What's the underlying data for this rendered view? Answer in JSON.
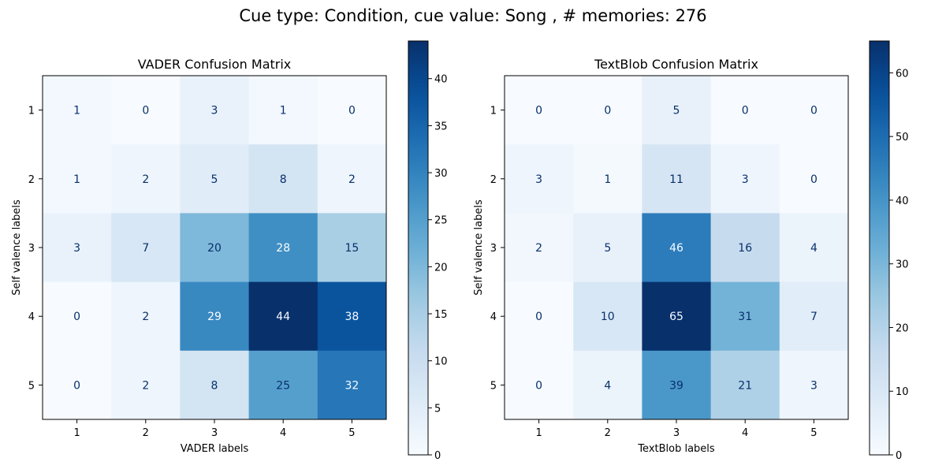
{
  "figure": {
    "suptitle": "Cue type: Condition, cue value: Song , # memories: 276"
  },
  "chart_data": [
    {
      "type": "heatmap",
      "title": "VADER Confusion Matrix",
      "xlabel": "VADER labels",
      "ylabel": "Self valence labels",
      "x_categories": [
        "1",
        "2",
        "3",
        "4",
        "5"
      ],
      "y_categories": [
        "1",
        "2",
        "3",
        "4",
        "5"
      ],
      "values": [
        [
          1,
          0,
          3,
          1,
          0
        ],
        [
          1,
          2,
          5,
          8,
          2
        ],
        [
          3,
          7,
          20,
          28,
          15
        ],
        [
          0,
          2,
          29,
          44,
          38
        ],
        [
          0,
          2,
          8,
          25,
          32
        ]
      ],
      "colormap": "Blues",
      "colorbar": {
        "range": [
          0,
          44
        ],
        "ticks": [
          0,
          5,
          10,
          15,
          20,
          25,
          30,
          35,
          40
        ]
      },
      "grid": false
    },
    {
      "type": "heatmap",
      "title": "TextBlob Confusion Matrix",
      "xlabel": "TextBlob labels",
      "ylabel": "Self valence labels",
      "x_categories": [
        "1",
        "2",
        "3",
        "4",
        "5"
      ],
      "y_categories": [
        "1",
        "2",
        "3",
        "4",
        "5"
      ],
      "values": [
        [
          0,
          0,
          5,
          0,
          0
        ],
        [
          3,
          1,
          11,
          3,
          0
        ],
        [
          2,
          5,
          46,
          16,
          4
        ],
        [
          0,
          10,
          65,
          31,
          7
        ],
        [
          0,
          4,
          39,
          21,
          3
        ]
      ],
      "colormap": "Blues",
      "colorbar": {
        "range": [
          0,
          65
        ],
        "ticks": [
          0,
          10,
          20,
          30,
          40,
          50,
          60
        ]
      },
      "grid": false
    }
  ]
}
